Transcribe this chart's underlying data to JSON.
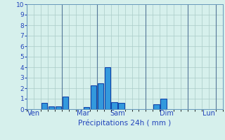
{
  "title": "Précipitations 24h ( mm )",
  "bar_color_dark": "#1144aa",
  "bar_color_light": "#3399dd",
  "background_color": "#d6f0ec",
  "grid_color": "#aaccc8",
  "axis_color": "#6699bb",
  "text_color": "#2244bb",
  "ylim": [
    0,
    10
  ],
  "yticks": [
    0,
    1,
    2,
    3,
    4,
    5,
    6,
    7,
    8,
    9,
    10
  ],
  "n_bars": 28,
  "day_labels": [
    "Ven",
    "Mar",
    "Sam",
    "Dim",
    "Lun"
  ],
  "day_tick_positions": [
    0.5,
    7.5,
    12.5,
    19.5,
    25.5
  ],
  "day_vline_positions": [
    0,
    5,
    10,
    17,
    23,
    27
  ],
  "bar_indices": [
    2,
    3,
    4,
    5,
    8,
    9,
    10,
    11,
    12,
    13,
    14,
    18,
    19,
    22
  ],
  "bar_heights": [
    0.6,
    0.25,
    0.25,
    1.2,
    0.2,
    2.3,
    2.5,
    4.0,
    0.7,
    0.6,
    0.0,
    0.5,
    1.0,
    0.0
  ]
}
